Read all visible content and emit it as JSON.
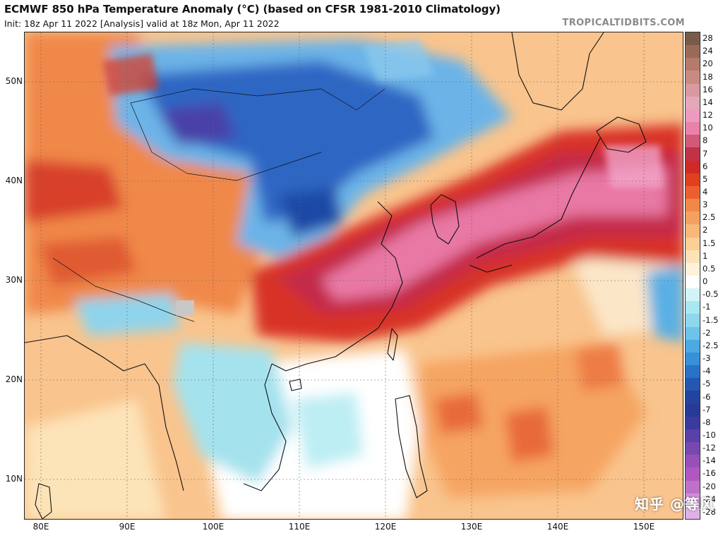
{
  "header": {
    "title": "ECMWF 850 hPa Temperature Anomaly (°C) (based on CFSR 1981-2010 Climatology)",
    "subtitle": "Init: 18z Apr 11 2022   [Analysis]   valid at 18z Mon, Apr 11 2022",
    "site": "TROPICALTIDBITS.COM"
  },
  "map": {
    "lat_labels": [
      "50N",
      "40N",
      "30N",
      "20N",
      "10N"
    ],
    "lon_labels": [
      "80E",
      "90E",
      "100E",
      "110E",
      "120E",
      "130E",
      "140E",
      "150E"
    ],
    "regions": {
      "cold_anomaly": "Mongolia / North China",
      "warm_anomaly": "East China / Korea / Japan"
    }
  },
  "colorbar": {
    "labels": [
      "28",
      "24",
      "20",
      "18",
      "16",
      "14",
      "12",
      "10",
      "8",
      "7",
      "6",
      "5",
      "4",
      "3",
      "2.5",
      "2",
      "1.5",
      "1",
      "0.5",
      "0",
      "-0.5",
      "-1",
      "-1.5",
      "-2",
      "-2.5",
      "-3",
      "-4",
      "-5",
      "-6",
      "-7",
      "-8",
      "-10",
      "-12",
      "-14",
      "-16",
      "-20",
      "-24",
      "-28"
    ],
    "colors": [
      "#7a5a48",
      "#9a6a58",
      "#b57a6a",
      "#c98a80",
      "#d89aa0",
      "#e4a8b8",
      "#ee9ac0",
      "#e882a8",
      "#d05a78",
      "#c03248",
      "#d02a28",
      "#e04020",
      "#ec6030",
      "#f28848",
      "#f5a060",
      "#f8b878",
      "#fbcf95",
      "#fde2b5",
      "#fff2d8",
      "#ffffff",
      "#d2f4f8",
      "#a8e8f0",
      "#8ed8ee",
      "#6cc4ea",
      "#4caae2",
      "#3890d8",
      "#2a72c8",
      "#2458b0",
      "#2244a0",
      "#273a98",
      "#3a3aa0",
      "#5a40a8",
      "#7848b0",
      "#9850b8",
      "#b058c0",
      "#c070c8",
      "#d090d8",
      "#e0b0e8"
    ]
  },
  "watermark": "知乎 @等风"
}
